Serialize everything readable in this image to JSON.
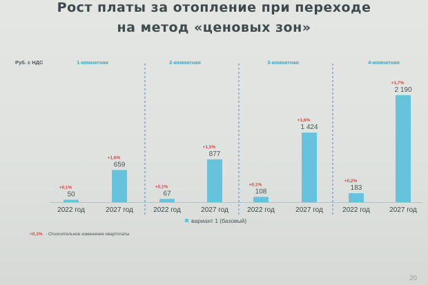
{
  "slide": {
    "title_line1": "Рост платы за отопление при переходе",
    "title_line2": "на метод «ценовых зон»",
    "page_number": "20"
  },
  "chart_data": {
    "type": "bar",
    "unit_label": "Руб. с НДС",
    "groups": [
      {
        "name": "1-комнатная",
        "categories": [
          "2022 год",
          "2027 год"
        ],
        "values": [
          50,
          659
        ],
        "value_labels": [
          "50",
          "659"
        ],
        "changes": [
          "+0,1%",
          "+1,6%"
        ]
      },
      {
        "name": "2-комнатная",
        "categories": [
          "2022 год",
          "2027 год"
        ],
        "values": [
          67,
          877
        ],
        "value_labels": [
          "67",
          "877"
        ],
        "changes": [
          "+0,1%",
          "+1,5%"
        ]
      },
      {
        "name": "3-комнатная",
        "categories": [
          "2022 год",
          "2027 год"
        ],
        "values": [
          108,
          1424
        ],
        "value_labels": [
          "108",
          "1 424"
        ],
        "changes": [
          "+0,1%",
          "+1,6%"
        ]
      },
      {
        "name": "4-комнатная",
        "categories": [
          "2022 год",
          "2027 год"
        ],
        "values": [
          183,
          2190
        ],
        "value_labels": [
          "183",
          "2 190"
        ],
        "changes": [
          "+0,2%",
          "+1,7%"
        ]
      }
    ],
    "legend": "вариант 1 (базовый)",
    "footnote_marker": "+0,1%",
    "footnote_text": "- Относительное изменение квартплаты",
    "colors": {
      "bar": "#67c2dc",
      "change": "#d64a3c",
      "group_label": "#3aa8c4",
      "divider": "#3a8fc8"
    }
  }
}
